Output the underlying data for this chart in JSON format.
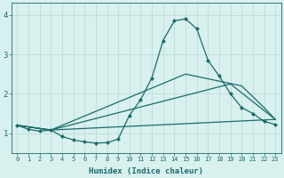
{
  "xlabel": "Humidex (Indice chaleur)",
  "xlim": [
    -0.5,
    23.5
  ],
  "ylim": [
    0.5,
    4.3
  ],
  "xticks": [
    0,
    1,
    2,
    3,
    4,
    5,
    6,
    7,
    8,
    9,
    10,
    11,
    12,
    13,
    14,
    15,
    16,
    17,
    18,
    19,
    20,
    21,
    22,
    23
  ],
  "yticks": [
    1,
    2,
    3,
    4
  ],
  "bg_color": "#d8f0ee",
  "line_color": "#1a6b6b",
  "grid_color": "#b8d8d4",
  "line1_x": [
    0,
    1,
    2,
    3,
    4,
    5,
    6,
    7,
    8,
    9,
    10,
    11,
    12,
    13,
    14,
    15,
    16,
    17,
    18,
    19,
    20,
    21,
    22,
    23
  ],
  "line1_y": [
    1.2,
    1.1,
    1.05,
    1.08,
    0.92,
    0.83,
    0.78,
    0.75,
    0.76,
    0.85,
    1.45,
    1.85,
    2.4,
    3.35,
    3.85,
    3.9,
    3.65,
    2.85,
    2.45,
    2.0,
    1.65,
    1.5,
    1.3,
    1.22
  ],
  "line2_x": [
    0,
    3,
    23
  ],
  "line2_y": [
    1.2,
    1.08,
    1.35
  ],
  "line3_x": [
    0,
    3,
    19,
    23
  ],
  "line3_y": [
    1.2,
    1.08,
    2.25,
    1.35
  ],
  "line4_x": [
    0,
    3,
    15,
    20,
    22,
    23
  ],
  "line4_y": [
    1.2,
    1.08,
    2.5,
    2.2,
    1.65,
    1.35
  ],
  "marker": "D",
  "markersize": 2.0,
  "linewidth": 0.9
}
